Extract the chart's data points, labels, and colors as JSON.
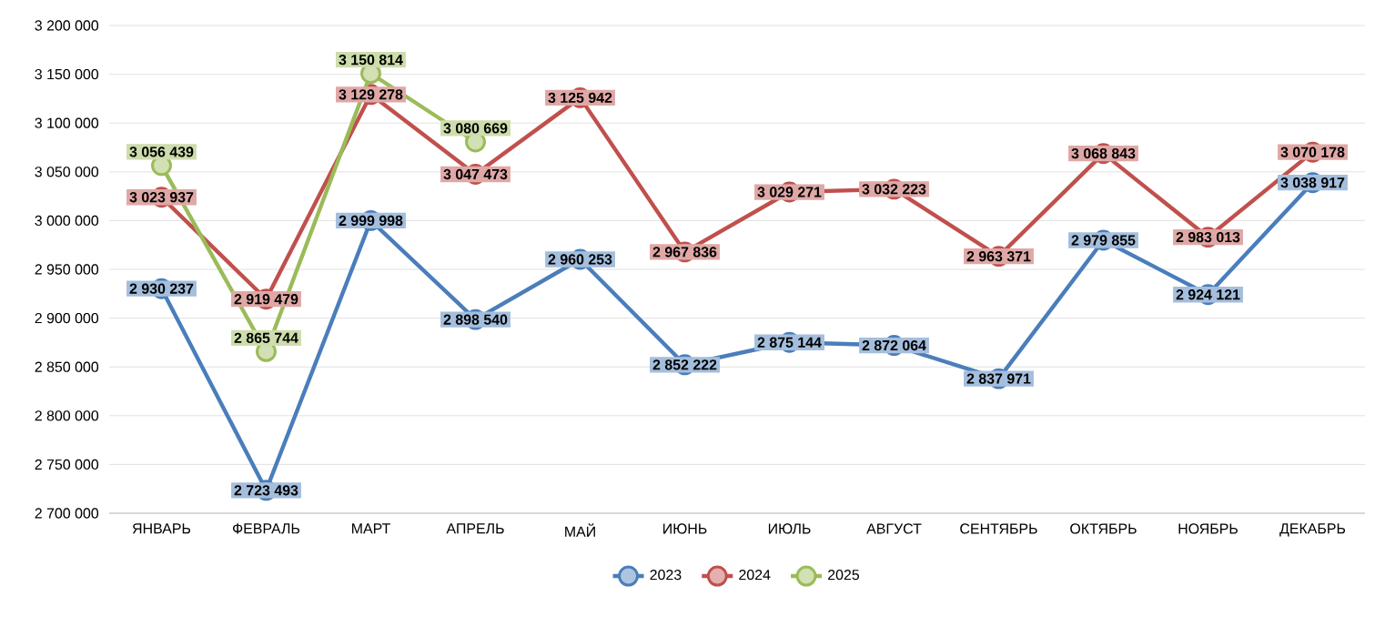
{
  "chart_data": {
    "type": "line",
    "categories": [
      "ЯНВАРЬ",
      "ФЕВРАЛЬ",
      "МАРТ",
      "АПРЕЛЬ",
      "МАЙ",
      "ИЮНЬ",
      "ИЮЛЬ",
      "АВГУСТ",
      "СЕНТЯБРЬ",
      "ОКТЯБРЬ",
      "НОЯБРЬ",
      "ДЕКАБРЬ"
    ],
    "series": [
      {
        "name": "2023",
        "color": "#4a7ebb",
        "values": [
          2930237,
          2723493,
          2999998,
          2898540,
          2960253,
          2852222,
          2875144,
          2872064,
          2837971,
          2979855,
          2924121,
          3038917
        ],
        "value_labels": [
          "2 930 237",
          "2 723 493",
          "2 999 998",
          "2 898 540",
          "2 960 253",
          "2 852 222",
          "2 875 144",
          "2 872 064",
          "2 837 971",
          "2 979 855",
          "2 924 121",
          "3 038 917"
        ]
      },
      {
        "name": "2024",
        "color": "#c0504d",
        "values": [
          3023937,
          2919479,
          3129278,
          3047473,
          3125942,
          2967836,
          3029271,
          3032223,
          2963371,
          3068843,
          2983013,
          3070178
        ],
        "value_labels": [
          "3 023 937",
          "2 919 479",
          "3 129 278",
          "3 047 473",
          "3 125 942",
          "2 967 836",
          "3 029 271",
          "3 032 223",
          "2 963 371",
          "3 068 843",
          "2 983 013",
          "3 070 178"
        ]
      },
      {
        "name": "2025",
        "color": "#9bbb59",
        "values": [
          3056439,
          2865744,
          3150814,
          3080669,
          null,
          null,
          null,
          null,
          null,
          null,
          null,
          null
        ],
        "value_labels": [
          "3 056 439",
          "2 865 744",
          "3 150 814",
          "3 080 669",
          null,
          null,
          null,
          null,
          null,
          null,
          null,
          null
        ]
      }
    ],
    "ylim": [
      2700000,
      3200000
    ],
    "yticks": [
      {
        "value": 2700000,
        "label": "2 700 000"
      },
      {
        "value": 2750000,
        "label": "2 750 000"
      },
      {
        "value": 2800000,
        "label": "2 800 000"
      },
      {
        "value": 2850000,
        "label": "2 850 000"
      },
      {
        "value": 2900000,
        "label": "2 900 000"
      },
      {
        "value": 2950000,
        "label": "2 950 000"
      },
      {
        "value": 3000000,
        "label": "3 000 000"
      },
      {
        "value": 3050000,
        "label": "3 050 000"
      },
      {
        "value": 3100000,
        "label": "3 100 000"
      },
      {
        "value": 3150000,
        "label": "3 150 000"
      },
      {
        "value": 3200000,
        "label": "3 200 000"
      }
    ],
    "grid": "y",
    "legend": "bottom",
    "marker": "circle",
    "line_style": "solid"
  }
}
